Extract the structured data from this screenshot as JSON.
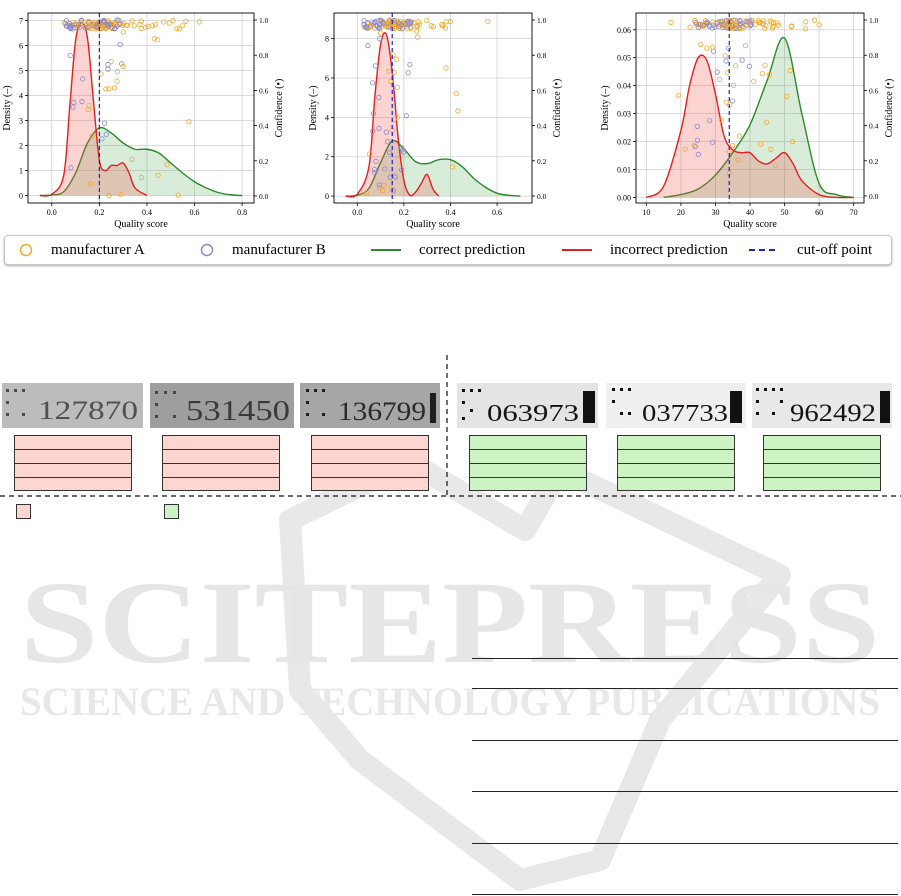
{
  "charts": [
    {
      "xlabel": "Quality score",
      "ylabel": "Density (–)",
      "y2label": "Confidence (•)",
      "xticks": [
        "0.0",
        "0.2",
        "0.4",
        "0.6",
        "0.8"
      ],
      "yticks": [
        "0",
        "1",
        "2",
        "3",
        "4",
        "5",
        "6",
        "7"
      ],
      "y2ticks": [
        "0.0",
        "0.2",
        "0.4",
        "0.6",
        "0.8",
        "1.0"
      ]
    },
    {
      "xlabel": "Quality score",
      "ylabel": "Density (–)",
      "y2label": "Confidence (•)",
      "xticks": [
        "0.0",
        "0.2",
        "0.4",
        "0.6"
      ],
      "yticks": [
        "0",
        "2",
        "4",
        "6",
        "8"
      ],
      "y2ticks": [
        "0.0",
        "0.2",
        "0.4",
        "0.6",
        "0.8",
        "1.0"
      ]
    },
    {
      "xlabel": "Quality score",
      "ylabel": "Density (–)",
      "y2label": "Confidence (•)",
      "xticks": [
        "10",
        "20",
        "30",
        "40",
        "50",
        "60",
        "70"
      ],
      "yticks": [
        "0.00",
        "0.01",
        "0.02",
        "0.03",
        "0.04",
        "0.05",
        "0.06"
      ],
      "y2ticks": [
        "0.0",
        "0.2",
        "0.4",
        "0.6",
        "0.8",
        "1.0"
      ]
    }
  ],
  "legend": {
    "items": [
      {
        "label": "manufacturer A",
        "color": "#f5a623"
      },
      {
        "label": "manufacturer B",
        "color": "#8a87c9"
      },
      {
        "label": "correct prediction",
        "color": "#2a8a2a"
      },
      {
        "label": "incorrect prediction",
        "color": "#e02020"
      },
      {
        "label": "cut-off point",
        "color": "#1f1fd0"
      }
    ]
  },
  "crops": [
    {
      "text": "127870",
      "group": "incorrect"
    },
    {
      "text": "531450",
      "group": "incorrect"
    },
    {
      "text": "136799",
      "group": "incorrect"
    },
    {
      "text": "063973",
      "group": "correct"
    },
    {
      "text": "037733",
      "group": "correct"
    },
    {
      "text": "962492",
      "group": "correct"
    }
  ],
  "watermark": {
    "title": "SCITEPRESS",
    "subtitle": "SCIENCE AND TECHNOLOGY PUBLICATIONS"
  },
  "chart_data": [
    {
      "type": "area",
      "xlabel": "Quality score",
      "ylabel": "Density (–)",
      "y2label": "Confidence (•)",
      "xlim": [
        -0.1,
        0.85
      ],
      "ylim": [
        -0.3,
        7.3
      ],
      "y2lim": [
        -0.04,
        1.04
      ],
      "cutoff": 0.2,
      "grid": true,
      "series": [
        {
          "name": "correct prediction",
          "color": "#2a8a2a",
          "x": [
            -0.05,
            0.0,
            0.05,
            0.1,
            0.15,
            0.2,
            0.25,
            0.3,
            0.35,
            0.4,
            0.45,
            0.5,
            0.55,
            0.6,
            0.65,
            0.7,
            0.75,
            0.8
          ],
          "values": [
            0,
            0.02,
            0.15,
            0.9,
            2.1,
            2.7,
            2.5,
            2.1,
            1.85,
            1.85,
            1.7,
            1.3,
            0.9,
            0.55,
            0.3,
            0.12,
            0.03,
            0
          ]
        },
        {
          "name": "incorrect prediction",
          "color": "#e02020",
          "x": [
            -0.05,
            0.0,
            0.05,
            0.075,
            0.1,
            0.125,
            0.15,
            0.175,
            0.2,
            0.225,
            0.25,
            0.275,
            0.3,
            0.325,
            0.35,
            0.4
          ],
          "values": [
            0,
            0.05,
            0.8,
            3.5,
            6.2,
            6.9,
            6.3,
            3.8,
            1.4,
            1.0,
            1.2,
            1.2,
            1.3,
            0.9,
            0.3,
            0
          ]
        }
      ]
    },
    {
      "type": "area",
      "xlabel": "Quality score",
      "ylabel": "Density (–)",
      "y2label": "Confidence (•)",
      "xlim": [
        -0.1,
        0.75
      ],
      "ylim": [
        -0.35,
        9.3
      ],
      "y2lim": [
        -0.04,
        1.04
      ],
      "cutoff": 0.15,
      "grid": true,
      "series": [
        {
          "name": "correct prediction",
          "color": "#2a8a2a",
          "x": [
            -0.05,
            0.0,
            0.05,
            0.1,
            0.15,
            0.2,
            0.25,
            0.3,
            0.35,
            0.4,
            0.45,
            0.5,
            0.55,
            0.6,
            0.65,
            0.7
          ],
          "values": [
            0,
            0.05,
            0.4,
            1.7,
            2.8,
            2.4,
            1.75,
            1.65,
            1.85,
            1.85,
            1.5,
            0.9,
            0.45,
            0.15,
            0.04,
            0
          ]
        },
        {
          "name": "incorrect prediction",
          "color": "#e02020",
          "x": [
            -0.05,
            0.0,
            0.05,
            0.075,
            0.1,
            0.125,
            0.15,
            0.175,
            0.2,
            0.225,
            0.25,
            0.275,
            0.3,
            0.325,
            0.35
          ],
          "values": [
            0,
            0.1,
            1.5,
            5.0,
            7.7,
            8.2,
            6.3,
            3.0,
            0.8,
            0.05,
            0.2,
            0.65,
            1.1,
            0.35,
            0
          ]
        }
      ]
    },
    {
      "type": "area",
      "xlabel": "Quality score",
      "ylabel": "Density (–)",
      "y2label": "Confidence (•)",
      "xlim": [
        7,
        73
      ],
      "ylim": [
        -0.002,
        0.066
      ],
      "y2lim": [
        -0.04,
        1.04
      ],
      "cutoff": 34,
      "grid": true,
      "series": [
        {
          "name": "correct prediction",
          "color": "#2a8a2a",
          "x": [
            15,
            20,
            25,
            30,
            35,
            40,
            45,
            50,
            55,
            60,
            65,
            70
          ],
          "values": [
            0,
            0.001,
            0.003,
            0.008,
            0.016,
            0.026,
            0.042,
            0.057,
            0.03,
            0.005,
            0.001,
            0
          ]
        },
        {
          "name": "incorrect prediction",
          "color": "#e02020",
          "x": [
            10,
            15,
            20,
            22.5,
            25,
            27.5,
            30,
            32.5,
            35,
            37.5,
            40,
            42.5,
            45,
            47.5,
            50,
            52.5,
            55,
            60,
            65,
            70
          ],
          "values": [
            0,
            0.004,
            0.024,
            0.04,
            0.05,
            0.049,
            0.037,
            0.022,
            0.017,
            0.016,
            0.016,
            0.013,
            0.012,
            0.014,
            0.016,
            0.012,
            0.006,
            0.001,
            0,
            0
          ]
        }
      ]
    }
  ]
}
